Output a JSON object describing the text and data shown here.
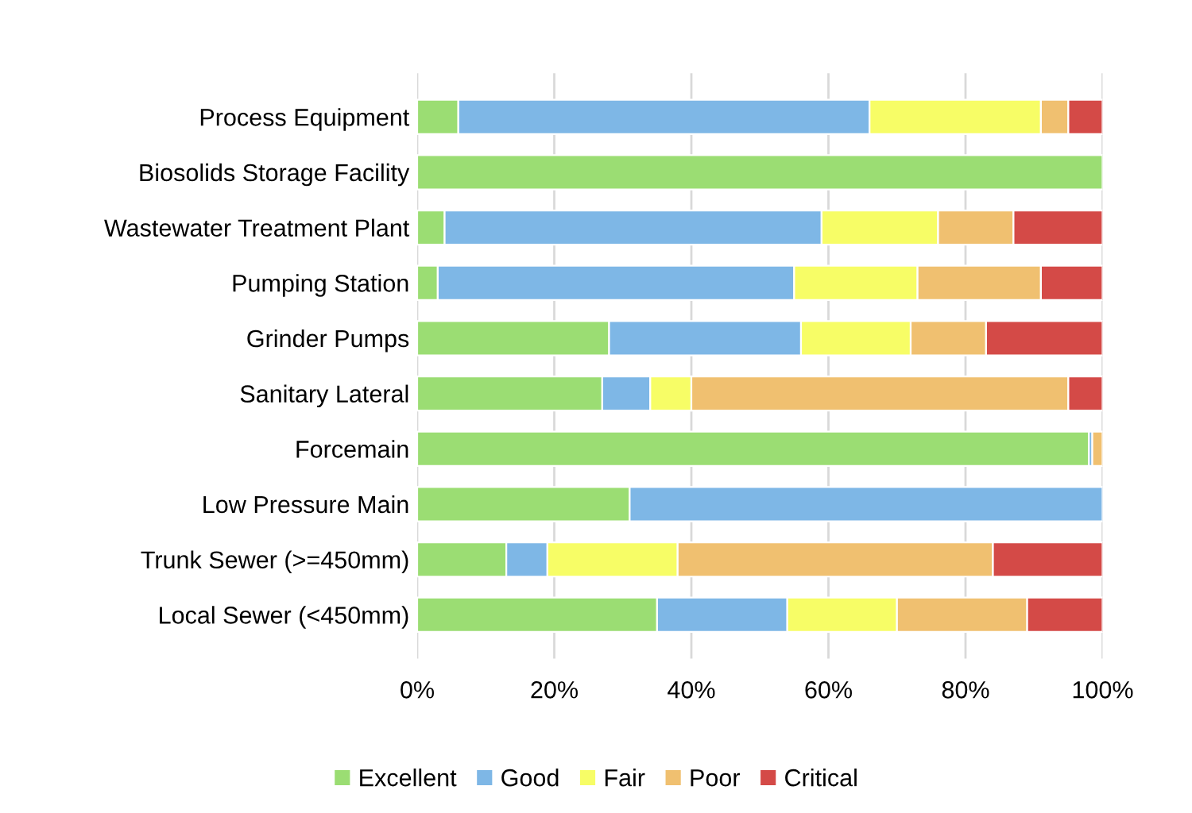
{
  "chart_data": {
    "type": "bar",
    "orientation": "horizontal",
    "stacked": true,
    "categories": [
      "Process Equipment",
      "Biosolids Storage Facility",
      "Wastewater Treatment Plant",
      "Pumping Station",
      "Grinder Pumps",
      "Sanitary Lateral",
      "Forcemain",
      "Low Pressure Main",
      "Trunk Sewer (>=450mm)",
      "Local Sewer (<450mm)"
    ],
    "series": [
      {
        "name": "Excellent",
        "color": "#9bdd73",
        "values": [
          6,
          100,
          4,
          3,
          28,
          27,
          98,
          31,
          13,
          35
        ]
      },
      {
        "name": "Good",
        "color": "#7eb7e6",
        "values": [
          60,
          0,
          55,
          52,
          28,
          7,
          0.5,
          69,
          6,
          19
        ]
      },
      {
        "name": "Fair",
        "color": "#f7fd66",
        "values": [
          25,
          0,
          17,
          18,
          16,
          6,
          0,
          0,
          19,
          16
        ]
      },
      {
        "name": "Poor",
        "color": "#f0c070",
        "values": [
          4,
          0,
          11,
          18,
          11,
          55,
          1.5,
          0,
          46,
          19
        ]
      },
      {
        "name": "Critical",
        "color": "#d44a47",
        "values": [
          5,
          0,
          13,
          9,
          17,
          5,
          null,
          0,
          16,
          11
        ]
      }
    ],
    "xlim": [
      0,
      100
    ],
    "xticks": [
      {
        "value": 0,
        "label": "0%"
      },
      {
        "value": 20,
        "label": "20%"
      },
      {
        "value": 40,
        "label": "40%"
      },
      {
        "value": 60,
        "label": "60%"
      },
      {
        "value": 80,
        "label": "80%"
      },
      {
        "value": 100,
        "label": "100%"
      }
    ],
    "grid": "x",
    "legend": "bottom"
  }
}
